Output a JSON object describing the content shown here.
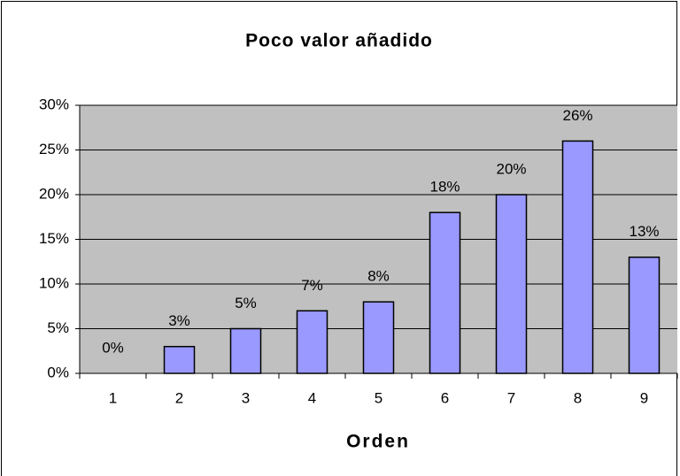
{
  "chart_data": {
    "type": "bar",
    "title": "Poco valor añadido",
    "x_label": "Orden",
    "categories": [
      "1",
      "2",
      "3",
      "4",
      "5",
      "6",
      "7",
      "8",
      "9"
    ],
    "values": [
      0,
      3,
      5,
      7,
      8,
      18,
      20,
      26,
      13
    ],
    "value_labels": [
      "0%",
      "3%",
      "5%",
      "7%",
      "8%",
      "18%",
      "20%",
      "26%",
      "13%"
    ],
    "color": "#9999ff",
    "ylim": [
      0,
      30
    ],
    "yticks": [
      {
        "value": 0,
        "label": "0%"
      },
      {
        "value": 5,
        "label": "5%"
      },
      {
        "value": 10,
        "label": "10%"
      },
      {
        "value": 15,
        "label": "15%"
      },
      {
        "value": 20,
        "label": "20%"
      },
      {
        "value": 25,
        "label": "25%"
      },
      {
        "value": 30,
        "label": "30%"
      }
    ],
    "grid": true
  }
}
